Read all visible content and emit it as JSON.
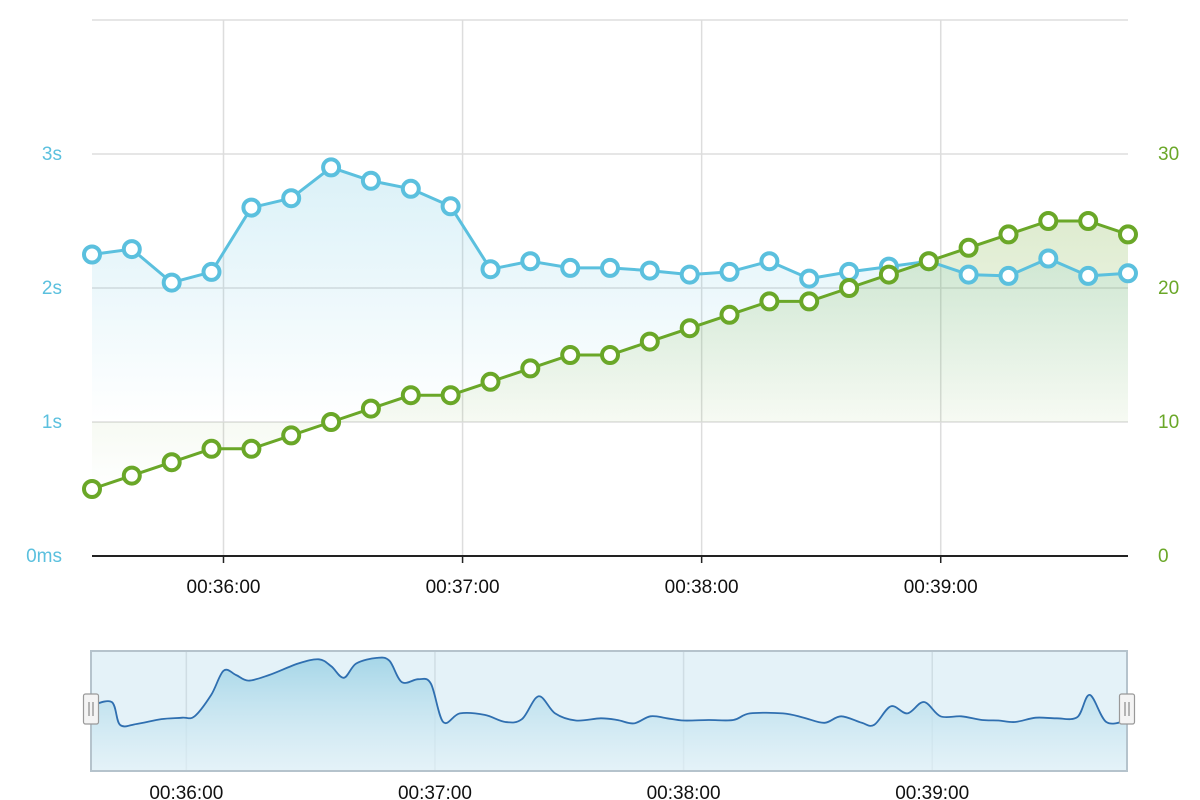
{
  "colors": {
    "response_time": "#5bc0de",
    "count": "#6aa728",
    "grid": "#dddddd",
    "axis": "#222222",
    "navigator_line": "#2f6fb0",
    "navigator_fill": "#e4f2f8",
    "navigator_border": "#b5c3cc"
  },
  "chart_data": {
    "type": "line",
    "x_start": "00:35:27",
    "x_end": "00:39:47",
    "x_ticks": [
      {
        "time": "00:36:00",
        "label": "00:36:00"
      },
      {
        "time": "00:37:00",
        "label": "00:37:00"
      },
      {
        "time": "00:38:00",
        "label": "00:38:00"
      },
      {
        "time": "00:39:00",
        "label": "00:39:00"
      }
    ],
    "y_left": {
      "min": 0,
      "max": 4,
      "ticks": [
        {
          "value": 0,
          "label": "0ms"
        },
        {
          "value": 1,
          "label": "1s"
        },
        {
          "value": 2,
          "label": "2s"
        },
        {
          "value": 3,
          "label": "3s"
        }
      ]
    },
    "y_right": {
      "min": 0,
      "max": 40,
      "ticks": [
        {
          "value": 0,
          "label": "0"
        },
        {
          "value": 10,
          "label": "10"
        },
        {
          "value": 20,
          "label": "20"
        },
        {
          "value": 30,
          "label": "30"
        }
      ]
    },
    "grid": true,
    "series": [
      {
        "axis": "left",
        "color": "#5bc0de",
        "area": true,
        "points": [
          [
            "00:35:27",
            2.25
          ],
          [
            "00:35:37",
            2.29
          ],
          [
            "00:35:47",
            2.04
          ],
          [
            "00:35:57",
            2.12
          ],
          [
            "00:36:07",
            2.6
          ],
          [
            "00:36:17",
            2.67
          ],
          [
            "00:36:27",
            2.9
          ],
          [
            "00:36:37",
            2.8
          ],
          [
            "00:36:47",
            2.74
          ],
          [
            "00:36:57",
            2.61
          ],
          [
            "00:37:07",
            2.14
          ],
          [
            "00:37:17",
            2.2
          ],
          [
            "00:37:27",
            2.15
          ],
          [
            "00:37:37",
            2.15
          ],
          [
            "00:37:47",
            2.13
          ],
          [
            "00:37:57",
            2.1
          ],
          [
            "00:38:07",
            2.12
          ],
          [
            "00:38:17",
            2.2
          ],
          [
            "00:38:27",
            2.07
          ],
          [
            "00:38:37",
            2.12
          ],
          [
            "00:38:47",
            2.16
          ],
          [
            "00:38:57",
            2.2
          ],
          [
            "00:39:07",
            2.1
          ],
          [
            "00:39:17",
            2.09
          ],
          [
            "00:39:27",
            2.22
          ],
          [
            "00:39:37",
            2.09
          ],
          [
            "00:39:47",
            2.11
          ]
        ]
      },
      {
        "axis": "right",
        "color": "#6aa728",
        "area": true,
        "points": [
          [
            "00:35:27",
            5
          ],
          [
            "00:35:37",
            6
          ],
          [
            "00:35:47",
            7
          ],
          [
            "00:35:57",
            8
          ],
          [
            "00:36:07",
            8
          ],
          [
            "00:36:17",
            9
          ],
          [
            "00:36:27",
            10
          ],
          [
            "00:36:37",
            11
          ],
          [
            "00:36:47",
            12
          ],
          [
            "00:36:57",
            12
          ],
          [
            "00:37:07",
            13
          ],
          [
            "00:37:17",
            14
          ],
          [
            "00:37:27",
            15
          ],
          [
            "00:37:37",
            15
          ],
          [
            "00:37:47",
            16
          ],
          [
            "00:37:57",
            17
          ],
          [
            "00:38:07",
            18
          ],
          [
            "00:38:17",
            19
          ],
          [
            "00:38:27",
            19
          ],
          [
            "00:38:37",
            20
          ],
          [
            "00:38:47",
            21
          ],
          [
            "00:38:57",
            22
          ],
          [
            "00:39:07",
            23
          ],
          [
            "00:39:17",
            24
          ],
          [
            "00:39:27",
            25
          ],
          [
            "00:39:37",
            25
          ],
          [
            "00:39:47",
            24
          ]
        ]
      }
    ]
  },
  "navigator": {
    "x_start": "00:35:37",
    "x_end": "00:39:47",
    "x_ticks": [
      {
        "time": "00:36:00",
        "label": "00:36:00"
      },
      {
        "time": "00:37:00",
        "label": "00:37:00"
      },
      {
        "time": "00:38:00",
        "label": "00:38:00"
      },
      {
        "time": "00:39:00",
        "label": "00:39:00"
      }
    ],
    "y_max": 4,
    "points": [
      [
        "00:35:37",
        2.22
      ],
      [
        "00:35:42",
        2.35
      ],
      [
        "00:35:44",
        1.55
      ],
      [
        "00:35:48",
        1.58
      ],
      [
        "00:35:54",
        1.75
      ],
      [
        "00:35:59",
        1.8
      ],
      [
        "00:36:02",
        1.85
      ],
      [
        "00:36:06",
        2.6
      ],
      [
        "00:36:09",
        3.45
      ],
      [
        "00:36:12",
        3.3
      ],
      [
        "00:36:15",
        3.1
      ],
      [
        "00:36:20",
        3.3
      ],
      [
        "00:36:27",
        3.7
      ],
      [
        "00:36:32",
        3.85
      ],
      [
        "00:36:35",
        3.6
      ],
      [
        "00:36:38",
        3.2
      ],
      [
        "00:36:41",
        3.7
      ],
      [
        "00:36:46",
        3.9
      ],
      [
        "00:36:49",
        3.8
      ],
      [
        "00:36:52",
        3.05
      ],
      [
        "00:36:56",
        3.15
      ],
      [
        "00:36:59",
        3.0
      ],
      [
        "00:37:02",
        1.65
      ],
      [
        "00:37:06",
        1.95
      ],
      [
        "00:37:12",
        1.9
      ],
      [
        "00:37:17",
        1.65
      ],
      [
        "00:37:21",
        1.75
      ],
      [
        "00:37:25",
        2.55
      ],
      [
        "00:37:29",
        1.95
      ],
      [
        "00:37:34",
        1.7
      ],
      [
        "00:37:40",
        1.78
      ],
      [
        "00:37:44",
        1.72
      ],
      [
        "00:37:48",
        1.6
      ],
      [
        "00:37:52",
        1.85
      ],
      [
        "00:37:56",
        1.78
      ],
      [
        "00:38:00",
        1.7
      ],
      [
        "00:38:06",
        1.72
      ],
      [
        "00:38:12",
        1.72
      ],
      [
        "00:38:16",
        1.95
      ],
      [
        "00:38:24",
        1.95
      ],
      [
        "00:38:29",
        1.8
      ],
      [
        "00:38:34",
        1.62
      ],
      [
        "00:38:38",
        1.85
      ],
      [
        "00:38:43",
        1.62
      ],
      [
        "00:38:46",
        1.55
      ],
      [
        "00:38:50",
        2.2
      ],
      [
        "00:38:54",
        1.95
      ],
      [
        "00:38:58",
        2.35
      ],
      [
        "00:39:02",
        1.85
      ],
      [
        "00:39:07",
        1.85
      ],
      [
        "00:39:12",
        1.72
      ],
      [
        "00:39:16",
        1.7
      ],
      [
        "00:39:20",
        1.65
      ],
      [
        "00:39:25",
        1.8
      ],
      [
        "00:39:30",
        1.78
      ],
      [
        "00:39:35",
        1.82
      ],
      [
        "00:39:38",
        2.6
      ],
      [
        "00:39:42",
        1.65
      ],
      [
        "00:39:47",
        1.7
      ]
    ]
  }
}
